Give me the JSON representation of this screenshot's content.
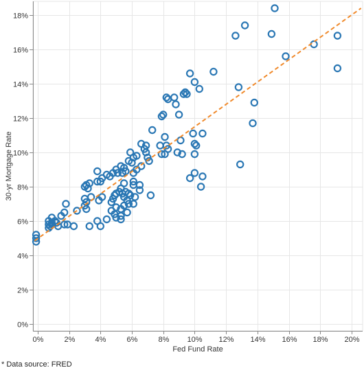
{
  "chart_data": {
    "type": "scatter",
    "xlabel": "Fed Fund Rate",
    "ylabel": "30-yr Mortgage Rate",
    "xlim": [
      -0.3,
      20.7
    ],
    "ylim": [
      -0.4,
      18.8
    ],
    "x_ticks": [
      0,
      2,
      4,
      6,
      8,
      10,
      12,
      14,
      16,
      18,
      20
    ],
    "y_ticks": [
      0,
      2,
      4,
      6,
      8,
      10,
      12,
      14,
      16,
      18
    ],
    "x_tick_labels": [
      "0%",
      "2%",
      "4%",
      "6%",
      "8%",
      "10%",
      "12%",
      "14%",
      "16%",
      "18%",
      "20%"
    ],
    "y_tick_labels": [
      "0%",
      "2%",
      "4%",
      "6%",
      "8%",
      "10%",
      "12%",
      "14%",
      "16%",
      "18%"
    ],
    "grid": true,
    "legend": "none",
    "colors": {
      "points": "#2a77b4",
      "trend": "#f0892a",
      "grid": "#e6e6e6",
      "axis": "#888888"
    },
    "trendline": {
      "style": "dashed",
      "x": [
        -0.2,
        20.6
      ],
      "y": [
        4.85,
        18.4
      ]
    },
    "points": [
      [
        15.1,
        18.4
      ],
      [
        13.2,
        17.4
      ],
      [
        12.6,
        16.8
      ],
      [
        14.9,
        16.9
      ],
      [
        19.1,
        16.8
      ],
      [
        17.6,
        16.3
      ],
      [
        15.8,
        15.6
      ],
      [
        19.1,
        14.9
      ],
      [
        11.2,
        14.7
      ],
      [
        9.7,
        14.6
      ],
      [
        10.0,
        14.1
      ],
      [
        10.3,
        13.7
      ],
      [
        12.8,
        13.8
      ],
      [
        9.3,
        13.4
      ],
      [
        9.4,
        13.5
      ],
      [
        9.5,
        13.4
      ],
      [
        8.2,
        13.2
      ],
      [
        8.3,
        13.1
      ],
      [
        8.7,
        13.2
      ],
      [
        8.8,
        12.8
      ],
      [
        13.8,
        12.9
      ],
      [
        7.9,
        12.1
      ],
      [
        8.0,
        12.2
      ],
      [
        9.0,
        12.2
      ],
      [
        13.7,
        11.7
      ],
      [
        7.3,
        11.3
      ],
      [
        9.9,
        11.1
      ],
      [
        10.5,
        11.1
      ],
      [
        8.1,
        10.9
      ],
      [
        9.1,
        10.7
      ],
      [
        6.6,
        10.5
      ],
      [
        6.9,
        10.4
      ],
      [
        7.8,
        10.4
      ],
      [
        8.2,
        10.4
      ],
      [
        10.0,
        10.5
      ],
      [
        10.1,
        10.4
      ],
      [
        6.8,
        10.2
      ],
      [
        8.3,
        10.2
      ],
      [
        5.9,
        10.0
      ],
      [
        6.9,
        10.0
      ],
      [
        7.9,
        9.9
      ],
      [
        8.1,
        9.9
      ],
      [
        8.9,
        10.0
      ],
      [
        9.2,
        9.9
      ],
      [
        10.0,
        9.9
      ],
      [
        6.1,
        9.7
      ],
      [
        6.3,
        9.8
      ],
      [
        7.0,
        9.7
      ],
      [
        5.8,
        9.5
      ],
      [
        7.1,
        9.5
      ],
      [
        6.0,
        9.4
      ],
      [
        5.3,
        9.2
      ],
      [
        5.5,
        9.1
      ],
      [
        6.3,
        9.0
      ],
      [
        6.6,
        9.2
      ],
      [
        5.0,
        9.0
      ],
      [
        5.6,
        8.9
      ],
      [
        4.8,
        8.8
      ],
      [
        5.1,
        8.8
      ],
      [
        5.4,
        8.8
      ],
      [
        3.8,
        8.9
      ],
      [
        6.1,
        8.8
      ],
      [
        12.9,
        9.3
      ],
      [
        10.0,
        8.8
      ],
      [
        9.7,
        8.5
      ],
      [
        10.5,
        8.6
      ],
      [
        4.4,
        8.7
      ],
      [
        4.6,
        8.6
      ],
      [
        4.1,
        8.5
      ],
      [
        3.8,
        8.3
      ],
      [
        6.1,
        8.3
      ],
      [
        4.0,
        8.3
      ],
      [
        5.5,
        8.2
      ],
      [
        6.1,
        8.1
      ],
      [
        6.5,
        8.1
      ],
      [
        3.3,
        8.2
      ],
      [
        3.1,
        8.1
      ],
      [
        3.0,
        8.0
      ],
      [
        3.2,
        7.9
      ],
      [
        5.3,
        7.9
      ],
      [
        5.2,
        7.7
      ],
      [
        5.6,
        7.7
      ],
      [
        6.5,
        7.8
      ],
      [
        10.4,
        8.0
      ],
      [
        5.0,
        7.6
      ],
      [
        5.4,
        7.6
      ],
      [
        5.8,
        7.6
      ],
      [
        5.9,
        7.5
      ],
      [
        7.2,
        7.5
      ],
      [
        4.9,
        7.5
      ],
      [
        5.5,
        7.4
      ],
      [
        6.2,
        7.4
      ],
      [
        4.1,
        7.4
      ],
      [
        3.4,
        7.4
      ],
      [
        3.0,
        7.3
      ],
      [
        4.8,
        7.3
      ],
      [
        5.7,
        7.2
      ],
      [
        3.9,
        7.2
      ],
      [
        3.1,
        7.1
      ],
      [
        4.7,
        7.1
      ],
      [
        5.8,
        7.0
      ],
      [
        1.8,
        7.0
      ],
      [
        3.0,
        6.9
      ],
      [
        6.1,
        7.0
      ],
      [
        5.5,
        6.9
      ],
      [
        5.0,
        6.8
      ],
      [
        5.3,
        6.7
      ],
      [
        3.1,
        6.7
      ],
      [
        4.7,
        6.6
      ],
      [
        2.5,
        6.6
      ],
      [
        5.7,
        6.5
      ],
      [
        4.9,
        6.4
      ],
      [
        1.7,
        6.5
      ],
      [
        1.5,
        6.3
      ],
      [
        5.3,
        6.3
      ],
      [
        5.0,
        6.2
      ],
      [
        0.9,
        6.2
      ],
      [
        5.3,
        6.1
      ],
      [
        4.4,
        6.1
      ],
      [
        0.7,
        6.0
      ],
      [
        1.1,
        6.0
      ],
      [
        3.8,
        6.0
      ],
      [
        0.9,
        5.9
      ],
      [
        1.2,
        5.9
      ],
      [
        1.7,
        5.8
      ],
      [
        0.9,
        5.8
      ],
      [
        0.7,
        5.8
      ],
      [
        0.8,
        5.7
      ],
      [
        1.9,
        5.8
      ],
      [
        2.3,
        5.7
      ],
      [
        3.3,
        5.7
      ],
      [
        4.0,
        5.7
      ],
      [
        0.7,
        5.6
      ],
      [
        1.3,
        5.7
      ],
      [
        -0.1,
        5.2
      ],
      [
        -0.1,
        5.0
      ],
      [
        -0.1,
        4.8
      ]
    ]
  },
  "footnote": "* Data source: FRED"
}
